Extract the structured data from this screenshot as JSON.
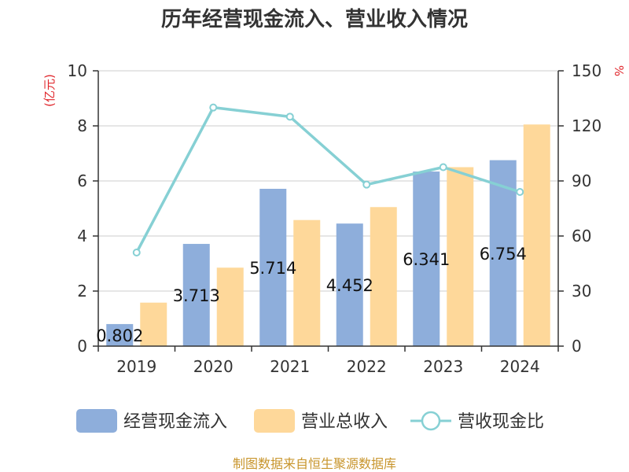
{
  "chart_data": {
    "type": "bar",
    "title": "历年经营现金流入、营业收入情况",
    "categories": [
      "2019",
      "2020",
      "2021",
      "2022",
      "2023",
      "2024"
    ],
    "series": [
      {
        "name": "经营现金流入",
        "kind": "bar",
        "axis": "left",
        "color": "#8eaedb",
        "values": [
          0.802,
          3.713,
          5.714,
          4.452,
          6.341,
          6.754
        ],
        "data_labels": [
          "0.802",
          "3.713",
          "5.714",
          "4.452",
          "6.341",
          "6.754"
        ]
      },
      {
        "name": "营业总收入",
        "kind": "bar",
        "axis": "left",
        "color": "#fed89a",
        "values": [
          1.58,
          2.85,
          4.58,
          5.05,
          6.5,
          8.05
        ]
      },
      {
        "name": "营收现金比",
        "kind": "line",
        "axis": "right",
        "color": "#86d0d4",
        "values": [
          51,
          130,
          125,
          88,
          97.5,
          84
        ]
      }
    ],
    "y_left": {
      "unit": "(亿元)",
      "ylim": [
        0,
        10
      ],
      "ticks": [
        "0",
        "2",
        "4",
        "6",
        "8",
        "10"
      ]
    },
    "y_right": {
      "unit": "%",
      "ylim": [
        0,
        150
      ],
      "ticks": [
        "0",
        "30",
        "60",
        "90",
        "120",
        "150"
      ]
    },
    "grid": true,
    "legend_position": "bottom"
  },
  "source_text": "制图数据来自恒生聚源数据库"
}
